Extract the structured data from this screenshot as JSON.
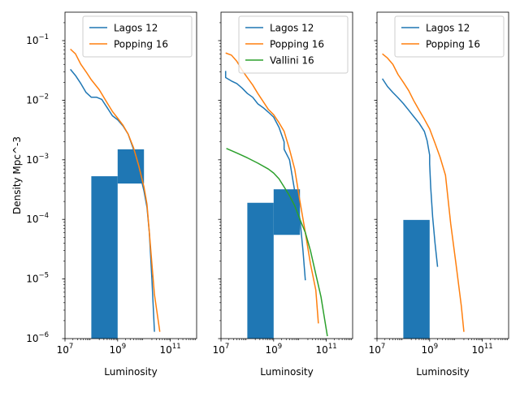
{
  "figure": {
    "ylabel": "Density Mpc^-3"
  },
  "chart_data": [
    {
      "type": "line",
      "xlabel": "Luminosity",
      "ylabel": "Density Mpc^-3",
      "xscale": "log",
      "yscale": "log",
      "xlim": [
        10000000.0,
        1000000000000.0
      ],
      "ylim": [
        1e-06,
        0.3
      ],
      "xticks": [
        {
          "value": 10000000.0,
          "base": "10",
          "exp": "7"
        },
        {
          "value": 1000000000.0,
          "base": "10",
          "exp": "9"
        },
        {
          "value": 100000000000.0,
          "base": "10",
          "exp": "11"
        }
      ],
      "yticks": [
        {
          "value": 1e-06,
          "base": "10",
          "exp": "−6"
        },
        {
          "value": 1e-05,
          "base": "10",
          "exp": "−5"
        },
        {
          "value": 0.0001,
          "base": "10",
          "exp": "−4"
        },
        {
          "value": 0.001,
          "base": "10",
          "exp": "−3"
        },
        {
          "value": 0.01,
          "base": "10",
          "exp": "−2"
        },
        {
          "value": 0.1,
          "base": "10",
          "exp": "−1"
        }
      ],
      "legend_position": "top-right",
      "bars": [
        {
          "x0": 100000000.0,
          "x1": 1000000000.0,
          "y0": 1e-06,
          "y1": 0.00053
        },
        {
          "x0": 1000000000.0,
          "x1": 10000000000.0,
          "y0": 0.0004,
          "y1": 0.0015
        }
      ],
      "series": [
        {
          "name": "Lagos 12",
          "color": "#1f77b4",
          "points": [
            [
              16000000.0,
              0.033
            ],
            [
              25000000.0,
              0.026
            ],
            [
              40000000.0,
              0.019
            ],
            [
              63000000.0,
              0.0135
            ],
            [
              100000000.0,
              0.0112
            ],
            [
              160000000.0,
              0.0112
            ],
            [
              250000000.0,
              0.0103
            ],
            [
              400000000.0,
              0.0075
            ],
            [
              630000000.0,
              0.0055
            ],
            [
              1000000000.0,
              0.0047
            ],
            [
              1600000000.0,
              0.0037
            ],
            [
              2500000000.0,
              0.0027
            ],
            [
              4000000000.0,
              0.0015
            ],
            [
              6300000000.0,
              0.0007
            ],
            [
              10000000000.0,
              0.0003
            ],
            [
              13000000000.0,
              0.00016
            ],
            [
              16000000000.0,
              6e-05
            ],
            [
              20000000000.0,
              1e-05
            ],
            [
              25000000000.0,
              1.3e-06
            ]
          ]
        },
        {
          "name": "Popping 16",
          "color": "#ff7f0e",
          "points": [
            [
              16000000.0,
              0.072
            ],
            [
              25000000.0,
              0.06
            ],
            [
              40000000.0,
              0.04
            ],
            [
              63000000.0,
              0.03
            ],
            [
              100000000.0,
              0.022
            ],
            [
              200000000.0,
              0.015
            ],
            [
              400000000.0,
              0.009
            ],
            [
              630000000.0,
              0.0065
            ],
            [
              1000000000.0,
              0.005
            ],
            [
              1600000000.0,
              0.0038
            ],
            [
              2500000000.0,
              0.0027
            ],
            [
              4000000000.0,
              0.0016
            ],
            [
              6300000000.0,
              0.0008
            ],
            [
              10000000000.0,
              0.00035
            ],
            [
              13000000000.0,
              0.00018
            ],
            [
              16000000000.0,
              6e-05
            ],
            [
              20000000000.0,
              1.8e-05
            ],
            [
              25000000000.0,
              5.5e-06
            ],
            [
              40000000000.0,
              1.3e-06
            ]
          ]
        }
      ]
    },
    {
      "type": "line",
      "xlabel": "Luminosity",
      "xscale": "log",
      "yscale": "log",
      "xlim": [
        10000000.0,
        1000000000000.0
      ],
      "ylim": [
        1e-06,
        0.3
      ],
      "xticks": [
        {
          "value": 10000000.0,
          "base": "10",
          "exp": "7"
        },
        {
          "value": 1000000000.0,
          "base": "10",
          "exp": "9"
        },
        {
          "value": 100000000000.0,
          "base": "10",
          "exp": "11"
        }
      ],
      "legend_position": "top-right",
      "bars": [
        {
          "x0": 100000000.0,
          "x1": 1000000000.0,
          "y0": 1e-06,
          "y1": 0.00019
        },
        {
          "x0": 1000000000.0,
          "x1": 10000000000.0,
          "y0": 5.5e-05,
          "y1": 0.00032
        }
      ],
      "series": [
        {
          "name": "Lagos 12",
          "color": "#1f77b4",
          "points": [
            [
              15000000.0,
              0.031
            ],
            [
              15000000.0,
              0.024
            ],
            [
              25000000.0,
              0.021
            ],
            [
              40000000.0,
              0.019
            ],
            [
              63000000.0,
              0.016
            ],
            [
              100000000.0,
              0.013
            ],
            [
              160000000.0,
              0.0112
            ],
            [
              250000000.0,
              0.0087
            ],
            [
              400000000.0,
              0.0075
            ],
            [
              630000000.0,
              0.0063
            ],
            [
              1000000000.0,
              0.0052
            ],
            [
              1600000000.0,
              0.0035
            ],
            [
              2500000000.0,
              0.002
            ],
            [
              2500000000.0,
              0.0015
            ],
            [
              4000000000.0,
              0.001
            ],
            [
              6300000000.0,
              0.0003
            ],
            [
              10000000000.0,
              0.0001
            ],
            [
              13000000000.0,
              3e-05
            ],
            [
              16000000000.0,
              9.5e-06
            ]
          ]
        },
        {
          "name": "Popping 16",
          "color": "#ff7f0e",
          "points": [
            [
              15000000.0,
              0.062
            ],
            [
              25000000.0,
              0.057
            ],
            [
              40000000.0,
              0.045
            ],
            [
              63000000.0,
              0.032
            ],
            [
              100000000.0,
              0.024
            ],
            [
              160000000.0,
              0.018
            ],
            [
              250000000.0,
              0.013
            ],
            [
              400000000.0,
              0.0095
            ],
            [
              630000000.0,
              0.007
            ],
            [
              1000000000.0,
              0.0057
            ],
            [
              1600000000.0,
              0.0042
            ],
            [
              2500000000.0,
              0.003
            ],
            [
              4000000000.0,
              0.0015
            ],
            [
              6300000000.0,
              0.0007
            ],
            [
              10000000000.0,
              0.0002
            ],
            [
              16000000000.0,
              6e-05
            ],
            [
              25000000000.0,
              1.8e-05
            ],
            [
              40000000000.0,
              6.5e-06
            ],
            [
              50000000000.0,
              1.8e-06
            ]
          ]
        },
        {
          "name": "Vallini 16",
          "color": "#2ca02c",
          "points": [
            [
              16000000.0,
              0.00155
            ],
            [
              40000000.0,
              0.0013
            ],
            [
              100000000.0,
              0.00108
            ],
            [
              250000000.0,
              0.00088
            ],
            [
              630000000.0,
              0.0007
            ],
            [
              1000000000.0,
              0.0006
            ],
            [
              1600000000.0,
              0.00048
            ],
            [
              2500000000.0,
              0.00035
            ],
            [
              4000000000.0,
              0.00025
            ],
            [
              6300000000.0,
              0.00017
            ],
            [
              10000000000.0,
              0.0001
            ],
            [
              16000000000.0,
              6e-05
            ],
            [
              25000000000.0,
              3e-05
            ],
            [
              40000000000.0,
              1.2e-05
            ],
            [
              63000000000.0,
              5e-06
            ],
            [
              80000000000.0,
              2.6e-06
            ],
            [
              110000000000.0,
              1.1e-06
            ]
          ]
        }
      ]
    },
    {
      "type": "line",
      "xlabel": "Luminosity",
      "xscale": "log",
      "yscale": "log",
      "xlim": [
        10000000.0,
        1000000000000.0
      ],
      "ylim": [
        1e-06,
        0.3
      ],
      "xticks": [
        {
          "value": 10000000.0,
          "base": "10",
          "exp": "7"
        },
        {
          "value": 1000000000.0,
          "base": "10",
          "exp": "9"
        },
        {
          "value": 100000000000.0,
          "base": "10",
          "exp": "11"
        }
      ],
      "legend_position": "top-right",
      "bars": [
        {
          "x0": 100000000.0,
          "x1": 1000000000.0,
          "y0": 1e-06,
          "y1": 9.8e-05
        }
      ],
      "series": [
        {
          "name": "Lagos 12",
          "color": "#1f77b4",
          "points": [
            [
              16000000.0,
              0.023
            ],
            [
              25000000.0,
              0.017
            ],
            [
              40000000.0,
              0.0135
            ],
            [
              63000000.0,
              0.011
            ],
            [
              100000000.0,
              0.0088
            ],
            [
              160000000.0,
              0.0068
            ],
            [
              250000000.0,
              0.0053
            ],
            [
              400000000.0,
              0.0041
            ],
            [
              630000000.0,
              0.003
            ],
            [
              800000000.0,
              0.0021
            ],
            [
              1000000000.0,
              0.0012
            ],
            [
              1000000000.0,
              0.00085
            ],
            [
              1100000000.0,
              0.00034
            ],
            [
              1300000000.0,
              0.00011
            ],
            [
              1600000000.0,
              4e-05
            ],
            [
              2000000000.0,
              1.6e-05
            ]
          ]
        },
        {
          "name": "Popping 16",
          "color": "#ff7f0e",
          "points": [
            [
              16000000.0,
              0.06
            ],
            [
              25000000.0,
              0.051
            ],
            [
              40000000.0,
              0.04
            ],
            [
              63000000.0,
              0.027
            ],
            [
              100000000.0,
              0.02
            ],
            [
              160000000.0,
              0.0145
            ],
            [
              250000000.0,
              0.0098
            ],
            [
              400000000.0,
              0.0068
            ],
            [
              630000000.0,
              0.0048
            ],
            [
              1000000000.0,
              0.0033
            ],
            [
              1600000000.0,
              0.0019
            ],
            [
              2500000000.0,
              0.0011
            ],
            [
              4000000000.0,
              0.00055
            ],
            [
              6300000000.0,
              8.5e-05
            ],
            [
              10000000000.0,
              1.8e-05
            ],
            [
              16000000000.0,
              3.5e-06
            ],
            [
              20000000000.0,
              1.3e-06
            ]
          ]
        }
      ]
    }
  ]
}
